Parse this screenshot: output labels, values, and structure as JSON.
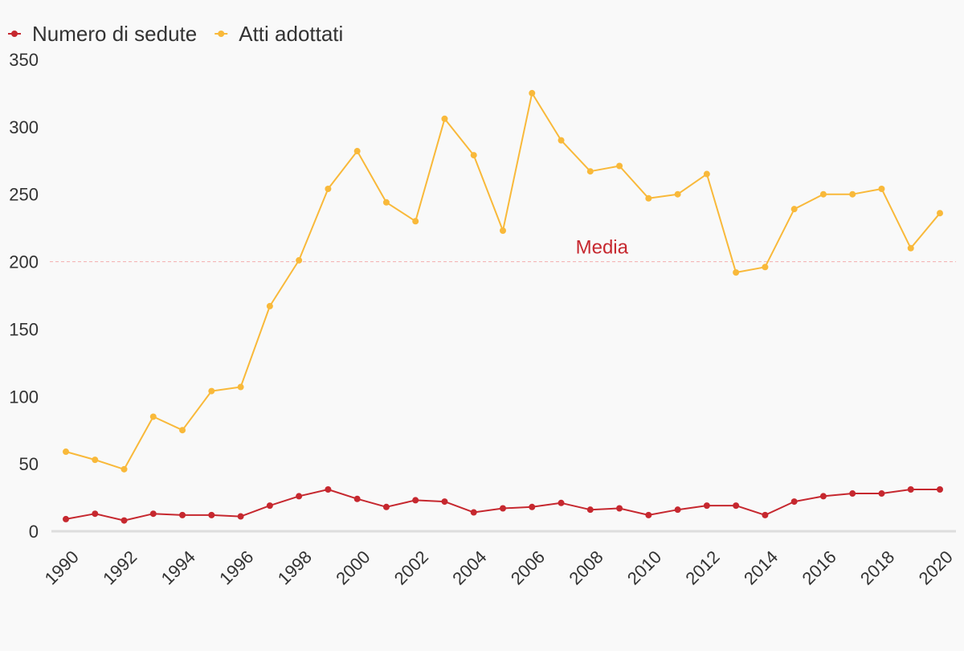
{
  "chart_data": {
    "type": "line",
    "x": [
      1990,
      1991,
      1992,
      1993,
      1994,
      1995,
      1996,
      1997,
      1998,
      1999,
      2000,
      2001,
      2002,
      2003,
      2004,
      2005,
      2006,
      2007,
      2008,
      2009,
      2010,
      2011,
      2012,
      2013,
      2014,
      2015,
      2016,
      2017,
      2018,
      2019,
      2020
    ],
    "series": [
      {
        "name": "Numero di sedute",
        "color": "#c6282f",
        "values": [
          9,
          13,
          8,
          13,
          12,
          12,
          11,
          19,
          26,
          31,
          24,
          18,
          23,
          22,
          14,
          17,
          18,
          21,
          16,
          17,
          12,
          16,
          19,
          19,
          12,
          22,
          26,
          28,
          28,
          31,
          31
        ]
      },
      {
        "name": "Atti adottati",
        "color": "#f9b93a",
        "values": [
          59,
          53,
          46,
          85,
          75,
          104,
          107,
          167,
          201,
          254,
          282,
          244,
          230,
          306,
          279,
          223,
          325,
          290,
          267,
          271,
          247,
          250,
          265,
          192,
          196,
          239,
          250,
          250,
          254,
          210,
          236
        ]
      }
    ],
    "title": "",
    "xlabel": "",
    "ylabel": "",
    "xlim": [
      1990,
      2020
    ],
    "ylim": [
      0,
      350
    ],
    "y_ticks": [
      0,
      50,
      100,
      150,
      200,
      250,
      300,
      350
    ],
    "x_ticks": [
      1990,
      1992,
      1994,
      1996,
      1998,
      2000,
      2002,
      2004,
      2006,
      2008,
      2010,
      2012,
      2014,
      2016,
      2018,
      2020
    ],
    "grid": false,
    "legend": "top-left",
    "reference_line": {
      "label": "Media",
      "value": 200,
      "color": "#c6282f",
      "line_color": "#f4b7b7"
    },
    "baseline_color": "#dddddd"
  }
}
